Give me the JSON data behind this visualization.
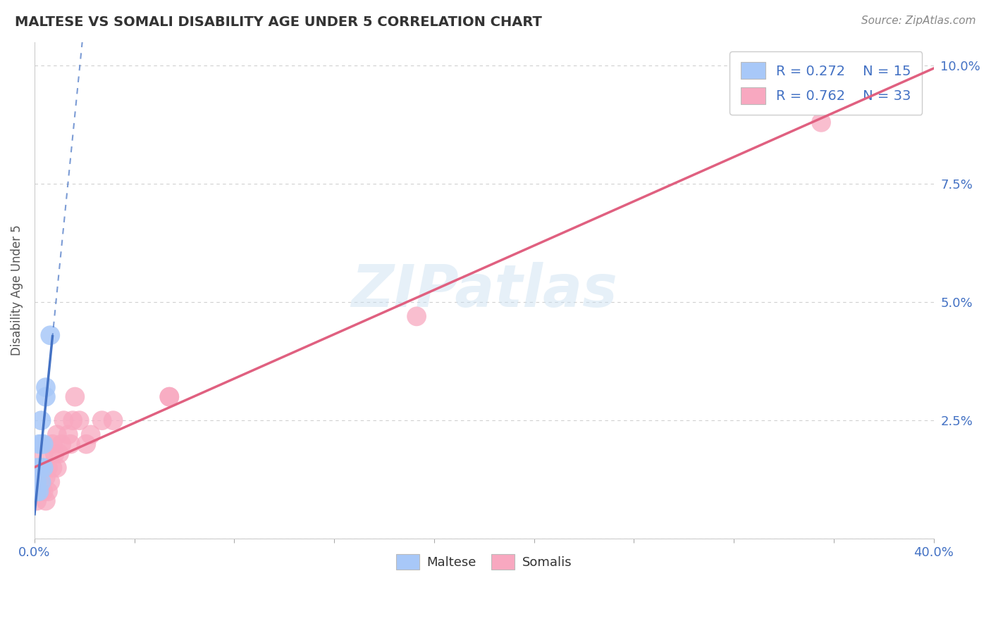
{
  "title": "MALTESE VS SOMALI DISABILITY AGE UNDER 5 CORRELATION CHART",
  "source": "Source: ZipAtlas.com",
  "ylabel": "Disability Age Under 5",
  "xlim": [
    0.0,
    0.4
  ],
  "ylim": [
    0.0,
    0.105
  ],
  "yticks": [
    0.0,
    0.025,
    0.05,
    0.075,
    0.1
  ],
  "ytick_labels": [
    "",
    "2.5%",
    "5.0%",
    "7.5%",
    "10.0%"
  ],
  "xtick_labels": [
    "0.0%",
    "",
    "",
    "",
    "",
    "",
    "",
    "",
    "",
    "40.0%"
  ],
  "grid_color": "#d0d0d0",
  "background_color": "#ffffff",
  "maltese_R": "0.272",
  "maltese_N": "15",
  "somali_R": "0.762",
  "somali_N": "33",
  "maltese_color": "#a8c8f8",
  "somali_color": "#f8a8c0",
  "maltese_line_color": "#4472c4",
  "somali_line_color": "#e06080",
  "legend_text_color": "#4472c4",
  "maltese_x": [
    0.001,
    0.001,
    0.001,
    0.002,
    0.002,
    0.002,
    0.003,
    0.003,
    0.003,
    0.003,
    0.004,
    0.004,
    0.005,
    0.005,
    0.007
  ],
  "maltese_y": [
    0.01,
    0.012,
    0.015,
    0.01,
    0.015,
    0.02,
    0.012,
    0.015,
    0.02,
    0.025,
    0.015,
    0.02,
    0.03,
    0.032,
    0.043
  ],
  "somali_x": [
    0.001,
    0.002,
    0.002,
    0.003,
    0.003,
    0.004,
    0.004,
    0.005,
    0.005,
    0.006,
    0.006,
    0.007,
    0.008,
    0.008,
    0.009,
    0.01,
    0.01,
    0.011,
    0.012,
    0.013,
    0.015,
    0.016,
    0.017,
    0.018,
    0.02,
    0.023,
    0.025,
    0.03,
    0.035,
    0.06,
    0.06,
    0.17,
    0.35
  ],
  "somali_y": [
    0.008,
    0.01,
    0.012,
    0.01,
    0.015,
    0.01,
    0.018,
    0.008,
    0.013,
    0.01,
    0.015,
    0.012,
    0.015,
    0.02,
    0.018,
    0.015,
    0.022,
    0.018,
    0.02,
    0.025,
    0.022,
    0.02,
    0.025,
    0.03,
    0.025,
    0.02,
    0.022,
    0.025,
    0.025,
    0.03,
    0.03,
    0.047,
    0.088
  ]
}
